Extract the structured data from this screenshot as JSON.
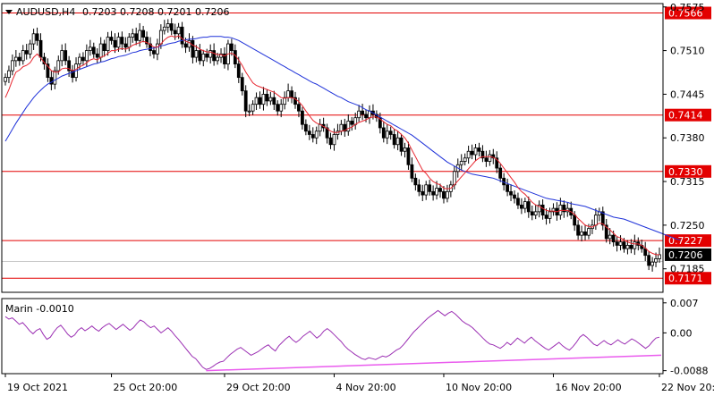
{
  "header": {
    "symbol_label": "AUDUSD,H4",
    "ohlc_label": "0.7203 0.7208 0.7201 0.7206"
  },
  "indicator": {
    "label": "Marin  -0.0010"
  },
  "colors": {
    "candle": "#000000",
    "ma_slow": "#1f32d9",
    "ma_fast": "#e8262f",
    "level": "#e30000",
    "level_box": "#e30000",
    "indicator_line": "#9b2fb3",
    "divergence_line": "#ea5cee",
    "current_box": "#000000",
    "grid": "#c8c8c8"
  },
  "chart_data": {
    "type": "candlestick",
    "ylim": [
      0.715,
      0.758
    ],
    "y_ticks": [
      "0.7575",
      "0.7510",
      "0.7445",
      "0.7380",
      "0.7315",
      "0.7250",
      "0.7185"
    ],
    "x_ticks": [
      "19 Oct 2021",
      "25 Oct 20:00",
      "29 Oct 20:00",
      "4 Nov 20:00",
      "10 Nov 20:00",
      "16 Nov 20:00",
      "22 Nov 20:00"
    ],
    "levels": [
      {
        "value": 0.7566,
        "label": "0.7566"
      },
      {
        "value": 0.7414,
        "label": "0.7414"
      },
      {
        "value": 0.733,
        "label": "0.7330"
      },
      {
        "value": 0.7227,
        "label": "0.7227"
      },
      {
        "value": 0.7171,
        "label": "0.7171"
      }
    ],
    "current_price": {
      "value": 0.7206,
      "label": "0.7206"
    },
    "closes": [
      0.747,
      0.748,
      0.7495,
      0.75,
      0.7495,
      0.751,
      0.7505,
      0.752,
      0.7535,
      0.7525,
      0.75,
      0.749,
      0.747,
      0.746,
      0.748,
      0.7495,
      0.751,
      0.7495,
      0.748,
      0.747,
      0.749,
      0.75,
      0.7495,
      0.751,
      0.7515,
      0.7505,
      0.75,
      0.752,
      0.751,
      0.753,
      0.7525,
      0.7515,
      0.753,
      0.752,
      0.7515,
      0.753,
      0.7535,
      0.7525,
      0.754,
      0.753,
      0.752,
      0.751,
      0.7505,
      0.752,
      0.754,
      0.7545,
      0.755,
      0.754,
      0.7535,
      0.7545,
      0.752,
      0.7515,
      0.7525,
      0.75,
      0.751,
      0.7495,
      0.7505,
      0.75,
      0.751,
      0.7495,
      0.75,
      0.7505,
      0.749,
      0.752,
      0.751,
      0.749,
      0.747,
      0.745,
      0.742,
      0.742,
      0.743,
      0.744,
      0.743,
      0.7445,
      0.7435,
      0.744,
      0.743,
      0.742,
      0.743,
      0.744,
      0.745,
      0.744,
      0.743,
      0.742,
      0.74,
      0.739,
      0.7385,
      0.738,
      0.739,
      0.74,
      0.7395,
      0.738,
      0.737,
      0.7385,
      0.739,
      0.74,
      0.739,
      0.7405,
      0.74,
      0.741,
      0.742,
      0.7415,
      0.741,
      0.742,
      0.7415,
      0.741,
      0.7395,
      0.738,
      0.739,
      0.7385,
      0.737,
      0.738,
      0.736,
      0.7365,
      0.734,
      0.732,
      0.731,
      0.73,
      0.7295,
      0.731,
      0.73,
      0.7295,
      0.7305,
      0.73,
      0.729,
      0.73,
      0.731,
      0.733,
      0.734,
      0.7345,
      0.735,
      0.736,
      0.7355,
      0.7365,
      0.736,
      0.735,
      0.7345,
      0.7355,
      0.735,
      0.7335,
      0.732,
      0.731,
      0.73,
      0.7295,
      0.729,
      0.728,
      0.7275,
      0.7285,
      0.727,
      0.7265,
      0.727,
      0.728,
      0.7265,
      0.726,
      0.727,
      0.7275,
      0.7265,
      0.728,
      0.727,
      0.7275,
      0.7265,
      0.725,
      0.7235,
      0.724,
      0.7235,
      0.7245,
      0.725,
      0.7265,
      0.727,
      0.725,
      0.723,
      0.7235,
      0.7225,
      0.722,
      0.7225,
      0.7215,
      0.722,
      0.7215,
      0.7225,
      0.722,
      0.7215,
      0.7205,
      0.719,
      0.7195,
      0.72,
      0.7206
    ],
    "ma_fast_values": [
      0.744,
      0.7452,
      0.7466,
      0.7478,
      0.7481,
      0.7486,
      0.7488,
      0.7492,
      0.75,
      0.7505,
      0.7499,
      0.7492,
      0.7487,
      0.748,
      0.7478,
      0.7478,
      0.7483,
      0.7484,
      0.7483,
      0.748,
      0.7482,
      0.7486,
      0.7488,
      0.7492,
      0.7496,
      0.7498,
      0.7496,
      0.75,
      0.7502,
      0.7506,
      0.751,
      0.751,
      0.7512,
      0.7513,
      0.7512,
      0.7514,
      0.7518,
      0.752,
      0.7522,
      0.7524,
      0.7522,
      0.7519,
      0.7515,
      0.7515,
      0.752,
      0.7526,
      0.753,
      0.7532,
      0.753,
      0.7532,
      0.7528,
      0.7524,
      0.7522,
      0.7518,
      0.7516,
      0.7512,
      0.751,
      0.7508,
      0.7508,
      0.7506,
      0.7504,
      0.7504,
      0.7502,
      0.7505,
      0.7506,
      0.7503,
      0.7496,
      0.7488,
      0.7478,
      0.747,
      0.7462,
      0.7458,
      0.7456,
      0.7454,
      0.7452,
      0.745,
      0.7448,
      0.7444,
      0.744,
      0.7439,
      0.744,
      0.744,
      0.7438,
      0.7434,
      0.7428,
      0.742,
      0.7413,
      0.7406,
      0.7402,
      0.74,
      0.7397,
      0.7394,
      0.739,
      0.7388,
      0.7388,
      0.739,
      0.7391,
      0.7394,
      0.7396,
      0.74,
      0.7403,
      0.7405,
      0.7407,
      0.741,
      0.7411,
      0.7411,
      0.7408,
      0.7404,
      0.74,
      0.7398,
      0.7393,
      0.739,
      0.7385,
      0.738,
      0.7372,
      0.7362,
      0.7352,
      0.7342,
      0.7332,
      0.7327,
      0.732,
      0.7315,
      0.7312,
      0.731,
      0.7305,
      0.7304,
      0.7305,
      0.731,
      0.7316,
      0.7322,
      0.7328,
      0.7334,
      0.734,
      0.7346,
      0.735,
      0.7352,
      0.7352,
      0.7352,
      0.7351,
      0.7348,
      0.7342,
      0.7335,
      0.7328,
      0.7321,
      0.7314,
      0.7306,
      0.73,
      0.7296,
      0.729,
      0.7284,
      0.728,
      0.7278,
      0.7275,
      0.7272,
      0.7271,
      0.7271,
      0.727,
      0.7272,
      0.7272,
      0.7272,
      0.727,
      0.7266,
      0.726,
      0.7255,
      0.725,
      0.7248,
      0.7247,
      0.725,
      0.7253,
      0.7252,
      0.7247,
      0.7243,
      0.7238,
      0.7233,
      0.7231,
      0.7228,
      0.7225,
      0.7223,
      0.7222,
      0.7222,
      0.722,
      0.7216,
      0.7211,
      0.7208,
      0.7206,
      0.7206
    ],
    "ma_slow_values": [
      0.7375,
      0.7384,
      0.7393,
      0.7402,
      0.741,
      0.7418,
      0.7426,
      0.7433,
      0.744,
      0.7446,
      0.7451,
      0.7456,
      0.746,
      0.7463,
      0.7466,
      0.7469,
      0.7472,
      0.7474,
      0.7476,
      0.7478,
      0.748,
      0.7482,
      0.7484,
      0.7486,
      0.7488,
      0.749,
      0.7491,
      0.7493,
      0.7494,
      0.7496,
      0.7498,
      0.7499,
      0.7501,
      0.7502,
      0.7503,
      0.7505,
      0.7507,
      0.7508,
      0.751,
      0.7511,
      0.7512,
      0.7513,
      0.7514,
      0.7515,
      0.7517,
      0.7518,
      0.752,
      0.7521,
      0.7522,
      0.7524,
      0.7525,
      0.7526,
      0.7527,
      0.7527,
      0.7528,
      0.7529,
      0.753,
      0.753,
      0.7531,
      0.7531,
      0.7531,
      0.7531,
      0.753,
      0.753,
      0.7529,
      0.7527,
      0.7525,
      0.7522,
      0.7519,
      0.7516,
      0.7513,
      0.751,
      0.7507,
      0.7504,
      0.7501,
      0.7498,
      0.7495,
      0.7492,
      0.7489,
      0.7486,
      0.7483,
      0.748,
      0.7477,
      0.7474,
      0.7471,
      0.7468,
      0.7465,
      0.7462,
      0.746,
      0.7457,
      0.7454,
      0.7451,
      0.7448,
      0.7445,
      0.7442,
      0.744,
      0.7437,
      0.7434,
      0.7432,
      0.743,
      0.7428,
      0.7425,
      0.7422,
      0.742,
      0.7417,
      0.7414,
      0.7411,
      0.7408,
      0.7405,
      0.7402,
      0.7399,
      0.7396,
      0.7393,
      0.739,
      0.7387,
      0.7384,
      0.738,
      0.7376,
      0.7372,
      0.7368,
      0.7364,
      0.736,
      0.7356,
      0.7352,
      0.7348,
      0.7344,
      0.7341,
      0.7338,
      0.7335,
      0.7332,
      0.733,
      0.7328,
      0.7326,
      0.7325,
      0.7324,
      0.7323,
      0.7322,
      0.7321,
      0.732,
      0.7318,
      0.7316,
      0.7314,
      0.7312,
      0.731,
      0.7308,
      0.7306,
      0.7304,
      0.7302,
      0.73,
      0.7298,
      0.7296,
      0.7294,
      0.7292,
      0.729,
      0.7289,
      0.7288,
      0.7287,
      0.7286,
      0.7285,
      0.7284,
      0.7282,
      0.7281,
      0.728,
      0.7279,
      0.7278,
      0.7276,
      0.7274,
      0.7272,
      0.727,
      0.7268,
      0.7266,
      0.7264,
      0.7262,
      0.7261,
      0.726,
      0.7259,
      0.7257,
      0.7255,
      0.7253,
      0.7251,
      0.7249,
      0.7247,
      0.7245,
      0.7243,
      0.7241,
      0.7239,
      0.7237,
      0.7235,
      0.7233,
      0.7231,
      0.7229,
      0.7228
    ],
    "indicator": {
      "ylim": [
        -0.0095,
        0.008
      ],
      "y_ticks": [
        "0.007",
        "0.00",
        "-0.0088"
      ],
      "values": [
        0.0038,
        0.0032,
        0.0035,
        0.0028,
        0.002,
        0.0024,
        0.0015,
        0.0005,
        -0.0002,
        0.0006,
        0.001,
        -0.0004,
        -0.0015,
        -0.001,
        0.0002,
        0.0012,
        0.0018,
        0.0008,
        -0.0003,
        -0.001,
        -0.0005,
        0.0006,
        0.0012,
        0.0005,
        0.001,
        0.0016,
        0.0009,
        0.0004,
        0.0012,
        0.0018,
        0.0022,
        0.0015,
        0.0008,
        0.0014,
        0.002,
        0.0013,
        0.0006,
        0.0012,
        0.0022,
        0.003,
        0.0026,
        0.0018,
        0.0012,
        0.0016,
        0.0008,
        0.0,
        0.0006,
        0.0012,
        0.0004,
        -0.0006,
        -0.0015,
        -0.0025,
        -0.0035,
        -0.0045,
        -0.0055,
        -0.006,
        -0.007,
        -0.008,
        -0.0085,
        -0.0083,
        -0.0078,
        -0.0072,
        -0.0068,
        -0.0066,
        -0.0058,
        -0.005,
        -0.0044,
        -0.0038,
        -0.0034,
        -0.004,
        -0.0046,
        -0.0052,
        -0.0048,
        -0.0044,
        -0.0038,
        -0.0032,
        -0.0028,
        -0.0036,
        -0.0042,
        -0.003,
        -0.0022,
        -0.0014,
        -0.0008,
        -0.0016,
        -0.0022,
        -0.0016,
        -0.0008,
        -0.0002,
        0.0004,
        -0.0004,
        -0.0012,
        -0.0006,
        0.0004,
        0.001,
        0.0004,
        -0.0004,
        -0.0012,
        -0.002,
        -0.003,
        -0.0038,
        -0.0044,
        -0.005,
        -0.0055,
        -0.006,
        -0.0062,
        -0.0058,
        -0.006,
        -0.0062,
        -0.0058,
        -0.0054,
        -0.0056,
        -0.0052,
        -0.0046,
        -0.004,
        -0.0036,
        -0.0028,
        -0.0018,
        -0.0008,
        0.0002,
        0.001,
        0.0018,
        0.0026,
        0.0034,
        0.004,
        0.0046,
        0.0052,
        0.0046,
        0.004,
        0.0046,
        0.005,
        0.0044,
        0.0036,
        0.0028,
        0.0022,
        0.0018,
        0.0012,
        0.0004,
        -0.0004,
        -0.0012,
        -0.002,
        -0.0026,
        -0.0028,
        -0.0032,
        -0.0036,
        -0.003,
        -0.0022,
        -0.0028,
        -0.002,
        -0.0012,
        -0.0018,
        -0.0024,
        -0.0016,
        -0.001,
        -0.0018,
        -0.0024,
        -0.003,
        -0.0036,
        -0.004,
        -0.0034,
        -0.0028,
        -0.0022,
        -0.003,
        -0.0036,
        -0.004,
        -0.0032,
        -0.0022,
        -0.001,
        -0.0004,
        -0.001,
        -0.0018,
        -0.0026,
        -0.003,
        -0.0024,
        -0.0018,
        -0.0024,
        -0.0028,
        -0.0022,
        -0.0016,
        -0.0022,
        -0.0026,
        -0.002,
        -0.0014,
        -0.0018,
        -0.0024,
        -0.003,
        -0.0036,
        -0.003,
        -0.002,
        -0.0012,
        -0.001
      ],
      "divergence_line": {
        "from": [
          0,
          -0.0088
        ],
        "to": [
          1,
          -0.0052
        ]
      }
    }
  }
}
